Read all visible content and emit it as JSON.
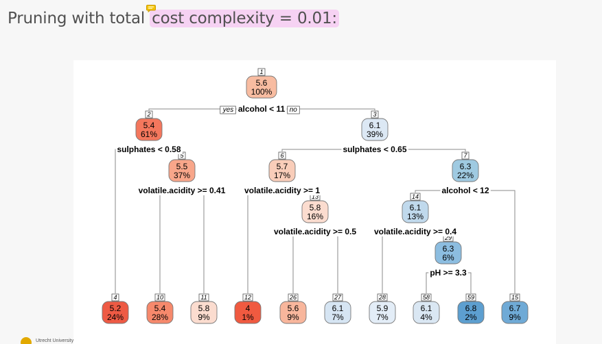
{
  "slide": {
    "title_prefix": "Pruning with total ",
    "title_highlight": "cost complexity = 0.01:"
  },
  "footer": {
    "logo_text": "Utrecht University"
  },
  "tree": {
    "nodes": [
      {
        "id": "1",
        "value": "5.6",
        "percent": "100%",
        "fill": "#f8bca1"
      },
      {
        "id": "2",
        "value": "5.4",
        "percent": "61%",
        "fill": "#f4775d"
      },
      {
        "id": "3",
        "value": "6.1",
        "percent": "39%",
        "fill": "#dce8f4"
      },
      {
        "id": "5",
        "value": "5.5",
        "percent": "37%",
        "fill": "#f8a68a"
      },
      {
        "id": "6",
        "value": "5.7",
        "percent": "17%",
        "fill": "#f9cdb9"
      },
      {
        "id": "7",
        "value": "6.3",
        "percent": "22%",
        "fill": "#9fcae1"
      },
      {
        "id": "13",
        "value": "5.8",
        "percent": "16%",
        "fill": "#fbdccf"
      },
      {
        "id": "14",
        "value": "6.1",
        "percent": "13%",
        "fill": "#c0d9ec"
      },
      {
        "id": "29",
        "value": "6.3",
        "percent": "6%",
        "fill": "#8cbde0"
      },
      {
        "id": "4",
        "value": "5.2",
        "percent": "24%",
        "fill": "#ee5a44"
      },
      {
        "id": "10",
        "value": "5.4",
        "percent": "28%",
        "fill": "#f6896c"
      },
      {
        "id": "11",
        "value": "5.8",
        "percent": "9%",
        "fill": "#fbdccf"
      },
      {
        "id": "12",
        "value": "4",
        "percent": "1%",
        "fill": "#f05a40"
      },
      {
        "id": "26",
        "value": "5.6",
        "percent": "9%",
        "fill": "#f8b69c"
      },
      {
        "id": "27",
        "value": "6.1",
        "percent": "7%",
        "fill": "#d6e5f3"
      },
      {
        "id": "28",
        "value": "5.9",
        "percent": "7%",
        "fill": "#e3edf7"
      },
      {
        "id": "58",
        "value": "6.1",
        "percent": "4%",
        "fill": "#dae7f3"
      },
      {
        "id": "59",
        "value": "6.8",
        "percent": "2%",
        "fill": "#5d9fd0"
      },
      {
        "id": "15",
        "value": "6.7",
        "percent": "9%",
        "fill": "#6faad6"
      }
    ],
    "splits": [
      {
        "node": "1",
        "text": "alcohol < 11"
      },
      {
        "node": "2",
        "text": "sulphates < 0.58"
      },
      {
        "node": "5",
        "text": "volatile.acidity >= 0.41"
      },
      {
        "node": "3",
        "text": "sulphates < 0.65"
      },
      {
        "node": "6",
        "text": "volatile.acidity >= 1"
      },
      {
        "node": "13",
        "text": "volatile.acidity >= 0.5"
      },
      {
        "node": "7",
        "text": "alcohol < 12"
      },
      {
        "node": "14",
        "text": "volatile.acidity >= 0.4"
      },
      {
        "node": "29",
        "text": "pH >= 3.3"
      }
    ],
    "branch_labels": {
      "yes": "yes",
      "no": "no"
    }
  }
}
